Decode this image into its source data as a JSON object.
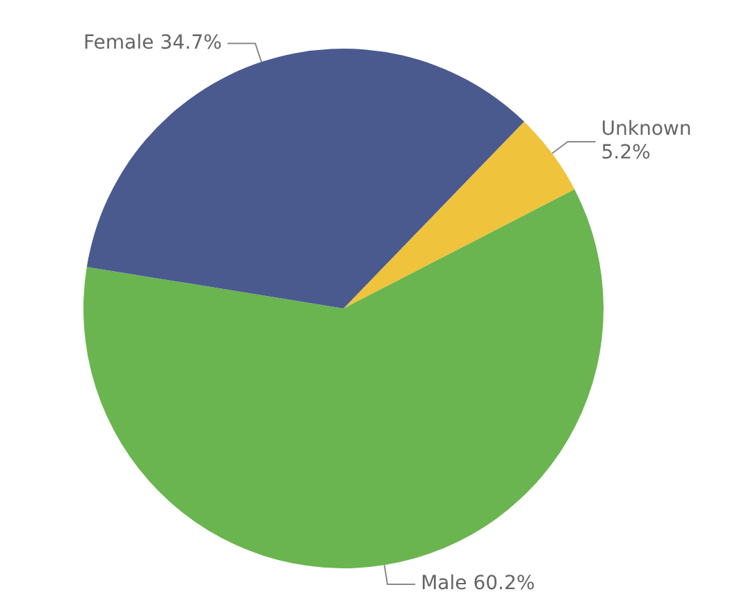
{
  "chart_data": {
    "type": "pie",
    "categories": [
      "Unknown",
      "Male",
      "Female"
    ],
    "values": [
      5.2,
      60.2,
      34.7
    ],
    "colors": [
      "#f0c33c",
      "#6ab54f",
      "#4a5a8f"
    ],
    "value_labels": [
      "5.2%",
      "60.2%",
      "34.7%"
    ],
    "legend": false
  }
}
